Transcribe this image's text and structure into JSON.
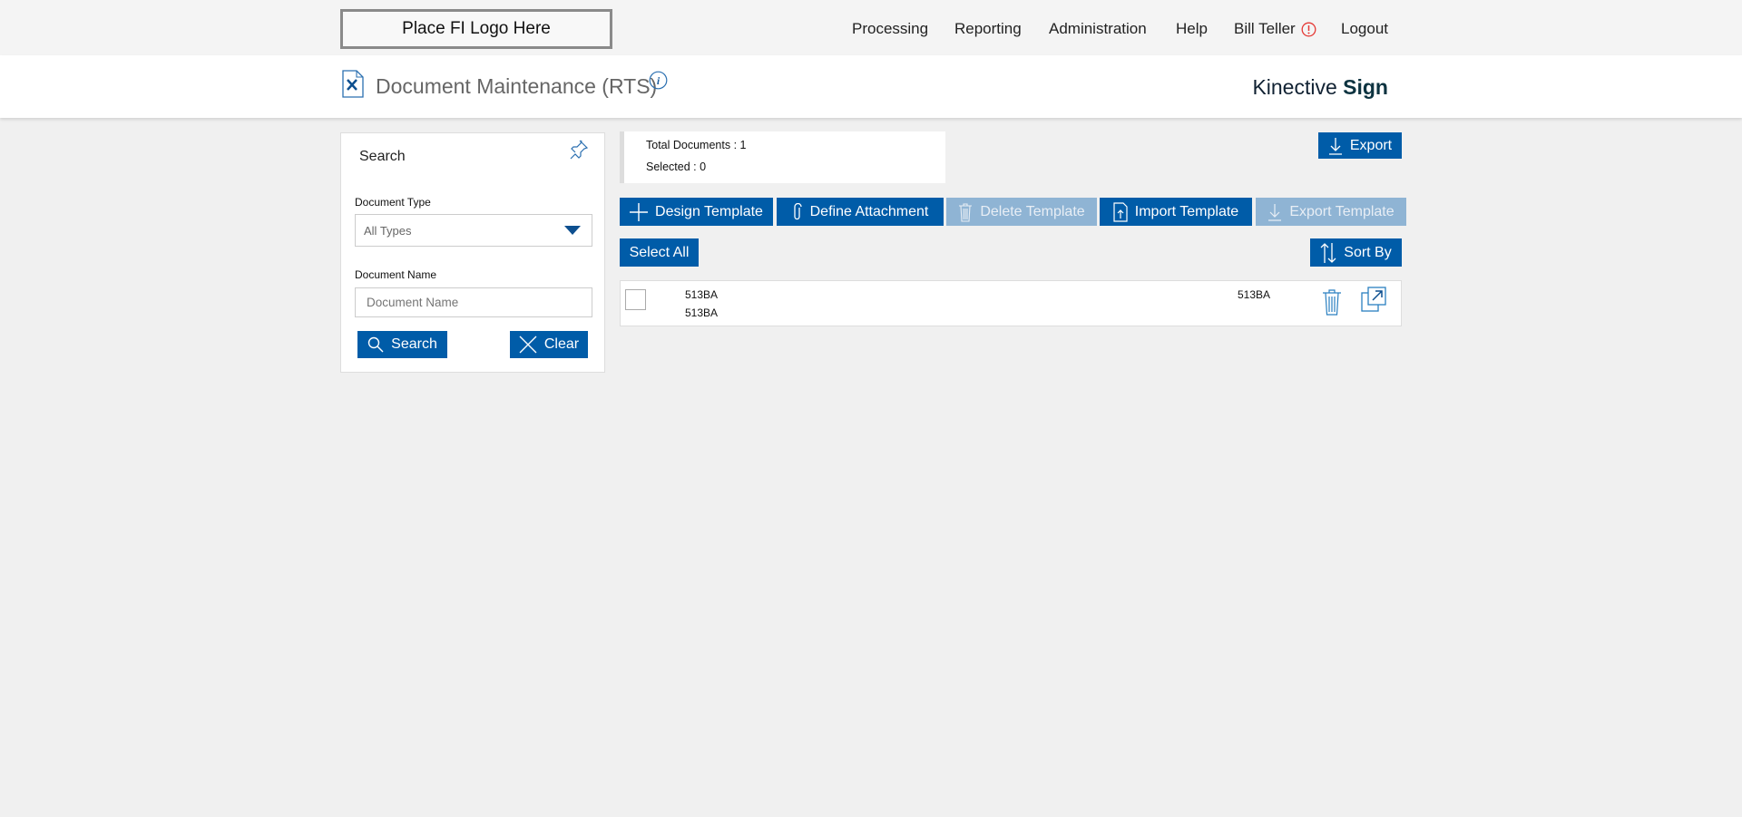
{
  "topbar": {
    "logo_text": "Place FI Logo Here",
    "nav": [
      "Processing",
      "Reporting",
      "Administration",
      "Help",
      "Bill Teller",
      "Logout"
    ],
    "alert_color": "#e53935"
  },
  "header": {
    "title": "Document Maintenance (RTS)",
    "brand_light": "Kinective",
    "brand_bold": "Sign"
  },
  "search": {
    "heading": "Search",
    "doc_type_label": "Document Type",
    "doc_type_value": "All Types",
    "doc_name_label": "Document Name",
    "doc_name_placeholder": "Document Name",
    "search_label": "Search",
    "clear_label": "Clear"
  },
  "stats": {
    "total": "Total Documents : 1",
    "selected": "Selected : 0"
  },
  "toolbar": {
    "export": "Export",
    "design": "Design Template",
    "define": "Define Attachment",
    "delete": "Delete Template",
    "import": "Import Template",
    "export_template": "Export Template",
    "select_all": "Select All",
    "sort_by": "Sort By"
  },
  "rows": [
    {
      "name": "513BA",
      "sub": "513BA",
      "type": "513BA",
      "checked": false
    }
  ],
  "colors": {
    "primary": "#005ca8",
    "disabled": "#8fb4d4"
  }
}
